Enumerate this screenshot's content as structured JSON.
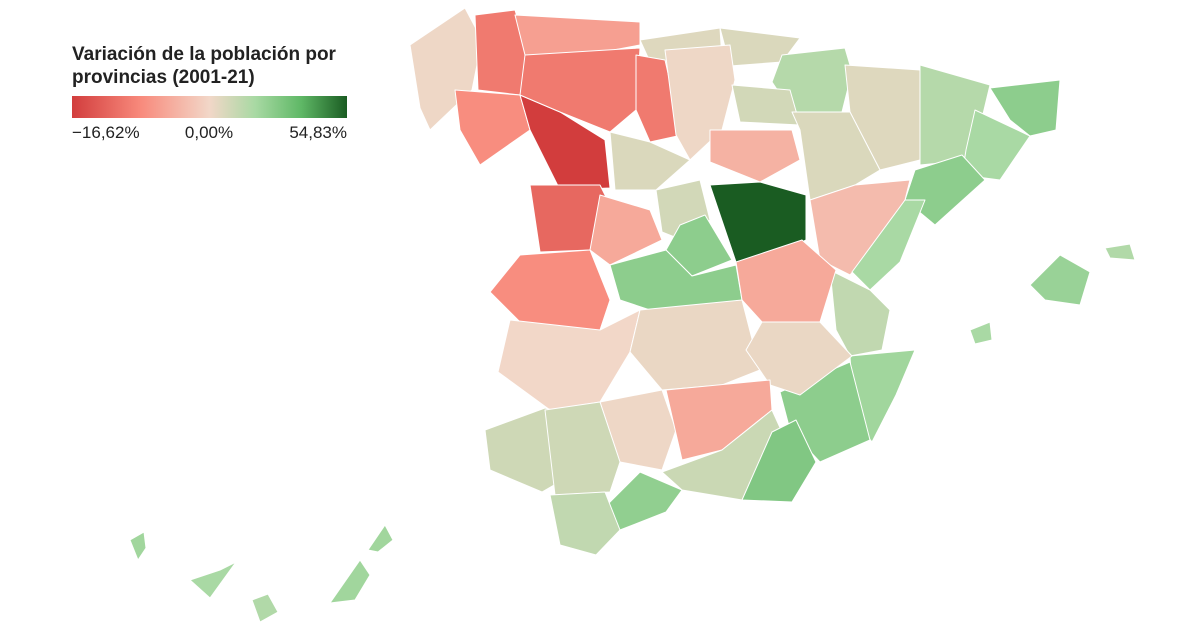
{
  "chart_data": {
    "type": "choropleth",
    "title": "Variación de la población por provincias (2001-21)",
    "legend": {
      "ticks": [
        {
          "value": -16.62,
          "label": "−16,62%"
        },
        {
          "value": 0,
          "label": "0,00%"
        },
        {
          "value": 54.83,
          "label": "54,83%"
        }
      ],
      "colors": [
        "#d23d3d",
        "#f88a7c",
        "#f2d7c8",
        "#a8d9a3",
        "#5fb866",
        "#1a5c22"
      ]
    },
    "values": [
      1,
      -10,
      -6,
      5,
      6,
      15,
      5,
      15,
      25,
      18,
      25,
      -8,
      -16.62,
      -10,
      -10,
      1,
      8,
      6,
      -3,
      18,
      12,
      20,
      25,
      6,
      -12,
      -8,
      -5,
      8,
      -4,
      54.83,
      25,
      25,
      -5,
      0,
      9,
      2,
      2,
      1,
      -5,
      9,
      10,
      28,
      24,
      12,
      22,
      16,
      18,
      20,
      20,
      18,
      16,
      20
    ]
  }
}
